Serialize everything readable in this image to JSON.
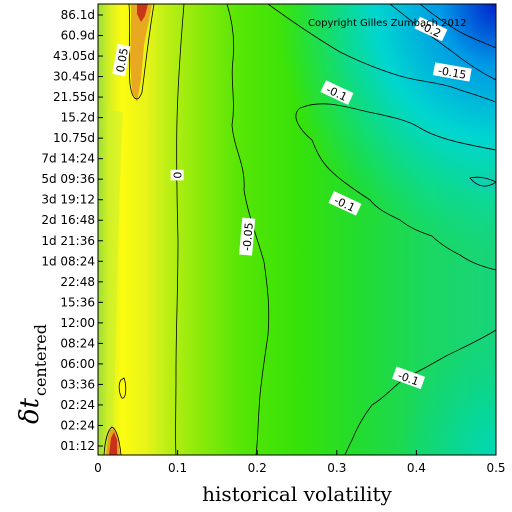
{
  "chart_data": {
    "type": "heatmap",
    "title": "",
    "xlabel": "historical volatility",
    "ylabel_main": "δt",
    "ylabel_sub": "centered",
    "xlim": [
      0,
      0.5
    ],
    "x_ticks": [
      "0",
      "0.1",
      "0.2",
      "0.3",
      "0.4",
      "0.5"
    ],
    "y_ticks": [
      "01:12",
      "02:24",
      "02:24",
      "03:36",
      "06:00",
      "08:24",
      "12:00",
      "15:36",
      "22:48",
      "1d 08:24",
      "1d 21:36",
      "2d 16:48",
      "3d 19:12",
      "5d 09:36",
      "7d 14:24",
      "10.75d",
      "15.2d",
      "21.55d",
      "30.45d",
      "43.05d",
      "60.9d",
      "86.1d"
    ],
    "contour_levels": [
      "0.05",
      "0",
      "-0.05",
      "-0.1",
      "-0.15",
      "-0.2"
    ],
    "contour_labels": [
      {
        "text": "0.05",
        "x": 0.03,
        "y_index": 18.8,
        "rot": -80
      },
      {
        "text": "0",
        "x": 0.1,
        "y_index": 13.2,
        "rot": -90
      },
      {
        "text": "-0.05",
        "x": 0.188,
        "y_index": 10.2,
        "rot": -85
      },
      {
        "text": "-0.1",
        "x": 0.3,
        "y_index": 17.2,
        "rot": 25
      },
      {
        "text": "-0.1",
        "x": 0.31,
        "y_index": 11.8,
        "rot": 25
      },
      {
        "text": "-0.1",
        "x": 0.39,
        "y_index": 3.3,
        "rot": 20
      },
      {
        "text": "-0.15",
        "x": 0.445,
        "y_index": 18.2,
        "rot": 10
      },
      {
        "text": "-0.2",
        "x": 0.418,
        "y_index": 20.3,
        "rot": 25
      }
    ],
    "copyright": "Copyright Gilles Zumbach 2012",
    "colors": {
      "high": "#cc1111",
      "mid_high": "#ffff00",
      "mid": "#33ff00",
      "low": "#22dd88",
      "lowest": "#0033cc"
    }
  }
}
